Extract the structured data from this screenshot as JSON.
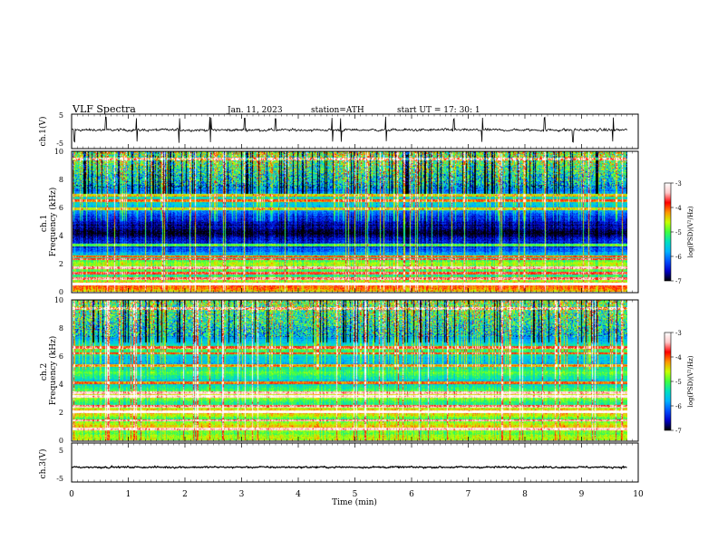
{
  "header": {
    "title": "VLF  Spectra",
    "date": "Jan. 11, 2023",
    "station": "station=ATH",
    "start_ut": "start  UT  =   17: 30: 1"
  },
  "colorbar": {
    "label": "log(PSD)(V²/Hz)",
    "ticks": [
      "-3",
      "-4",
      "-5",
      "-6",
      "-7"
    ],
    "range": [
      -7,
      -3
    ],
    "colors": [
      "#000000",
      "#0000c8",
      "#0050ff",
      "#00b4ff",
      "#00e0c0",
      "#40ff40",
      "#c8ff00",
      "#ff9600",
      "#ff0000",
      "#ffc8c8",
      "#ffffff"
    ]
  },
  "chart_data": [
    {
      "type": "line",
      "name": "ch1-waveform",
      "ylabel": "ch.1(V)",
      "ylim": [
        -5,
        5
      ],
      "yticks": [
        "5",
        "-5"
      ],
      "x_range": [
        0,
        9.8
      ],
      "baseline_v": 0.4,
      "noise_amplitude_v": 0.6,
      "spike_times_min": [
        0.05,
        0.6,
        1.15,
        1.9,
        2.45,
        3.05,
        3.6,
        4.6,
        4.75,
        5.55,
        6.75,
        7.25,
        8.35,
        8.85,
        9.55
      ]
    },
    {
      "type": "heatmap",
      "name": "ch1-spectrogram",
      "ylabel": "ch.1\nFrequency (kHz)",
      "ylim": [
        0,
        10
      ],
      "yticks": [
        "0",
        "2",
        "4",
        "6",
        "8",
        "10"
      ],
      "x_range": [
        0,
        9.8
      ],
      "freq_profile_khz_log": [
        [
          0,
          -4.3
        ],
        [
          0.4,
          -3.9
        ],
        [
          0.8,
          -4.8
        ],
        [
          1.2,
          -5.2
        ],
        [
          1.6,
          -4.9
        ],
        [
          2.0,
          -4.6
        ],
        [
          2.4,
          -5.3
        ],
        [
          3.0,
          -6.2
        ],
        [
          3.6,
          -6.4
        ],
        [
          4.2,
          -7.0
        ],
        [
          4.8,
          -6.6
        ],
        [
          5.4,
          -6.2
        ],
        [
          6.0,
          -5.7
        ],
        [
          6.6,
          -5.3
        ],
        [
          7.2,
          -6.1
        ],
        [
          8.0,
          -5.6
        ],
        [
          9.0,
          -5.1
        ],
        [
          10.0,
          -4.8
        ]
      ],
      "tone_lines_khz": [
        0.5,
        0.9,
        1.3,
        1.7,
        2.3,
        2.5,
        3.3,
        5.9,
        6.5,
        6.9,
        9.5
      ]
    },
    {
      "type": "heatmap",
      "name": "ch2-spectrogram",
      "ylabel": "ch.2\nFrequency (kHz)",
      "ylim": [
        0,
        10
      ],
      "yticks": [
        "0",
        "2",
        "4",
        "6",
        "8",
        "10"
      ],
      "x_range": [
        0,
        9.8
      ],
      "freq_profile_khz_log": [
        [
          0,
          -4.6
        ],
        [
          0.5,
          -4.9
        ],
        [
          1.0,
          -4.4
        ],
        [
          1.5,
          -5.0
        ],
        [
          2.0,
          -4.2
        ],
        [
          2.6,
          -5.2
        ],
        [
          3.2,
          -4.5
        ],
        [
          3.6,
          -5.1
        ],
        [
          4.2,
          -5.6
        ],
        [
          4.8,
          -5.0
        ],
        [
          5.4,
          -5.7
        ],
        [
          6.0,
          -5.5
        ],
        [
          6.5,
          -4.9
        ],
        [
          7.2,
          -5.9
        ],
        [
          8.0,
          -5.5
        ],
        [
          9.0,
          -5.2
        ],
        [
          10.0,
          -4.9
        ]
      ],
      "tone_lines_khz": [
        0.8,
        1.4,
        2.0,
        2.4,
        3.1,
        3.4,
        4.1,
        5.3,
        6.2,
        6.6,
        9.4
      ]
    },
    {
      "type": "line",
      "name": "ch3-waveform",
      "ylabel": "ch.3(V)",
      "ylim": [
        -5,
        5
      ],
      "yticks": [
        "5",
        "-5"
      ],
      "x_range": [
        0,
        9.8
      ],
      "baseline_v": -1.2,
      "noise_amplitude_v": 0.35
    }
  ],
  "x_axis": {
    "label": "Time  (min)",
    "ticks": [
      "0",
      "1",
      "2",
      "3",
      "4",
      "5",
      "6",
      "7",
      "8",
      "9",
      "10"
    ],
    "range": [
      0,
      10
    ]
  }
}
